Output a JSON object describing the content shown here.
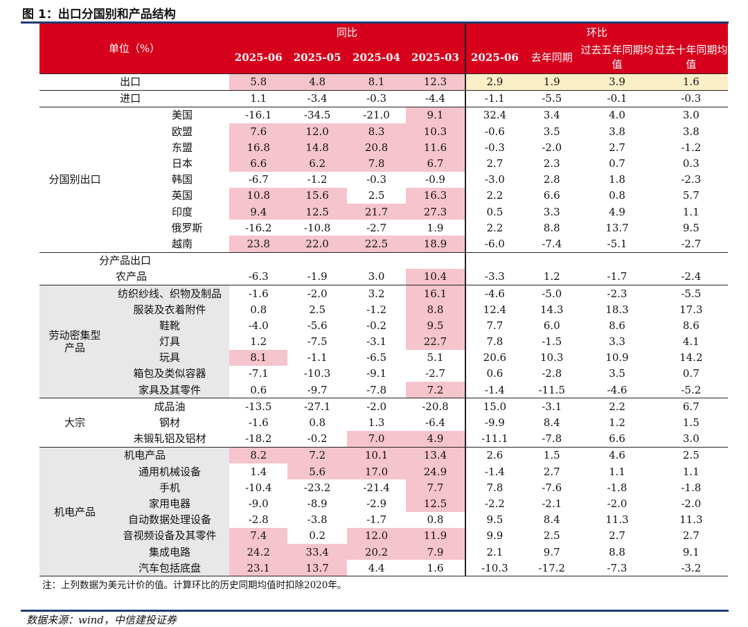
{
  "figure_title": "图 1：出口分国别和产品结构",
  "source": "数据来源：wind，中信建投证券",
  "note": "注：上列数据为美元计价的值。计算环比的历史同期均值时扣除2020年。",
  "header": {
    "unit_label": "单位（%）",
    "yoy_label": "同比",
    "mom_label": "环比",
    "columns": [
      "2025-06",
      "2025-05",
      "2025-04",
      "2025-03",
      "2025-06",
      "去年同期",
      "过去五年同期均值",
      "过去十年同期均值"
    ]
  },
  "groups": [
    {
      "label": "",
      "rows": [
        {
          "name": "出口",
          "values": [
            "5.8",
            "4.8",
            "8.1",
            "12.3",
            "2.9",
            "1.9",
            "3.9",
            "1.6"
          ]
        },
        {
          "name": "进口",
          "values": [
            "1.1",
            "-3.4",
            "-0.3",
            "-4.4",
            "-1.1",
            "-5.5",
            "-0.1",
            "-0.3"
          ]
        }
      ]
    },
    {
      "label": "分国别出口",
      "rows": [
        {
          "name": "美国",
          "values": [
            "-16.1",
            "-34.5",
            "-21.0",
            "9.1",
            "32.4",
            "3.4",
            "4.0",
            "3.0"
          ]
        },
        {
          "name": "欧盟",
          "values": [
            "7.6",
            "12.0",
            "8.3",
            "10.3",
            "-0.6",
            "3.5",
            "3.8",
            "3.8"
          ]
        },
        {
          "name": "东盟",
          "values": [
            "16.8",
            "14.8",
            "20.8",
            "11.6",
            "-0.3",
            "-2.0",
            "2.7",
            "-1.2"
          ]
        },
        {
          "name": "日本",
          "values": [
            "6.6",
            "6.2",
            "7.8",
            "6.7",
            "2.7",
            "2.3",
            "0.7",
            "0.3"
          ]
        },
        {
          "name": "韩国",
          "values": [
            "-6.7",
            "-1.2",
            "-0.3",
            "-0.9",
            "-3.0",
            "2.8",
            "1.8",
            "-2.3"
          ]
        },
        {
          "name": "英国",
          "values": [
            "10.8",
            "15.6",
            "2.5",
            "16.3",
            "2.2",
            "6.6",
            "0.8",
            "5.7"
          ]
        },
        {
          "name": "印度",
          "values": [
            "9.4",
            "12.5",
            "21.7",
            "27.3",
            "0.5",
            "3.3",
            "4.9",
            "1.1"
          ]
        },
        {
          "name": "俄罗斯",
          "values": [
            "-16.2",
            "-10.8",
            "-2.7",
            "1.9",
            "2.2",
            "8.8",
            "13.7",
            "9.5"
          ]
        },
        {
          "name": "越南",
          "values": [
            "23.8",
            "22.0",
            "22.5",
            "18.9",
            "-6.0",
            "-7.4",
            "-5.1",
            "-2.7"
          ]
        }
      ]
    },
    {
      "label": "分产品出口",
      "rows": [
        {
          "name": "农产品",
          "values": [
            "-6.3",
            "-1.9",
            "3.0",
            "10.4",
            "-3.3",
            "1.2",
            "-1.7",
            "-2.4"
          ]
        }
      ]
    },
    {
      "label": "劳动密集型产品",
      "rows": [
        {
          "name": "纺织纱线、织物及制品",
          "values": [
            "-1.6",
            "-2.0",
            "3.2",
            "16.1",
            "-4.6",
            "-5.0",
            "-2.3",
            "-5.5"
          ]
        },
        {
          "name": "服装及衣着附件",
          "values": [
            "0.8",
            "2.5",
            "-1.2",
            "8.8",
            "12.4",
            "14.3",
            "18.3",
            "17.3"
          ]
        },
        {
          "name": "鞋靴",
          "values": [
            "-4.0",
            "-5.6",
            "-0.2",
            "9.5",
            "7.7",
            "6.0",
            "8.6",
            "8.6"
          ]
        },
        {
          "name": "灯具",
          "values": [
            "1.2",
            "-7.5",
            "-3.1",
            "22.7",
            "7.8",
            "-1.5",
            "3.3",
            "4.1"
          ]
        },
        {
          "name": "玩具",
          "values": [
            "8.1",
            "-1.1",
            "-6.5",
            "5.1",
            "20.6",
            "10.3",
            "10.9",
            "14.2"
          ]
        },
        {
          "name": "箱包及类似容器",
          "values": [
            "-7.1",
            "-10.3",
            "-9.1",
            "-2.7",
            "0.6",
            "-2.8",
            "3.5",
            "0.7"
          ]
        },
        {
          "name": "家具及其零件",
          "values": [
            "0.6",
            "-9.7",
            "-7.8",
            "7.2",
            "-1.4",
            "-11.5",
            "-4.6",
            "-5.2"
          ]
        }
      ]
    },
    {
      "label": "大宗",
      "rows": [
        {
          "name": "成品油",
          "values": [
            "-13.5",
            "-27.1",
            "-2.0",
            "-20.8",
            "15.0",
            "-3.1",
            "2.2",
            "6.7"
          ]
        },
        {
          "name": "钢材",
          "values": [
            "-1.6",
            "0.8",
            "1.3",
            "-6.4",
            "-9.9",
            "8.4",
            "1.2",
            "1.5"
          ]
        },
        {
          "name": "未锻轧铝及铝材",
          "values": [
            "-18.2",
            "-0.2",
            "7.0",
            "4.9",
            "-11.1",
            "-7.8",
            "6.6",
            "3.0"
          ]
        }
      ]
    },
    {
      "label": "机电产品",
      "rows": [
        {
          "name": "机电产品",
          "values": [
            "8.2",
            "7.2",
            "10.1",
            "13.4",
            "2.6",
            "1.5",
            "4.6",
            "2.5"
          ]
        },
        {
          "name": "通用机械设备",
          "values": [
            "1.4",
            "5.6",
            "17.0",
            "24.9",
            "-1.4",
            "2.7",
            "1.1",
            "1.1"
          ]
        },
        {
          "name": "手机",
          "values": [
            "-10.4",
            "-23.2",
            "-21.4",
            "7.7",
            "7.8",
            "-7.6",
            "-1.8",
            "-1.8"
          ]
        },
        {
          "name": "家用电器",
          "values": [
            "-9.0",
            "-8.9",
            "-2.9",
            "12.5",
            "-2.2",
            "-2.1",
            "-2.0",
            "-2.0"
          ]
        },
        {
          "name": "自动数据处理设备",
          "values": [
            "-2.8",
            "-3.8",
            "-1.7",
            "0.8",
            "9.5",
            "8.4",
            "11.3",
            "11.3"
          ]
        },
        {
          "name": "音视频设备及其零件",
          "values": [
            "7.4",
            "0.2",
            "12.0",
            "11.9",
            "9.9",
            "2.5",
            "2.7",
            "2.7"
          ]
        },
        {
          "name": "集成电路",
          "values": [
            "24.2",
            "33.4",
            "20.2",
            "7.9",
            "2.1",
            "9.7",
            "8.8",
            "9.1"
          ]
        },
        {
          "name": "汽车包括底盘",
          "values": [
            "23.1",
            "13.7",
            "4.4",
            "1.6",
            "-10.3",
            "-17.2",
            "-7.3",
            "-3.2"
          ]
        }
      ]
    }
  ]
}
